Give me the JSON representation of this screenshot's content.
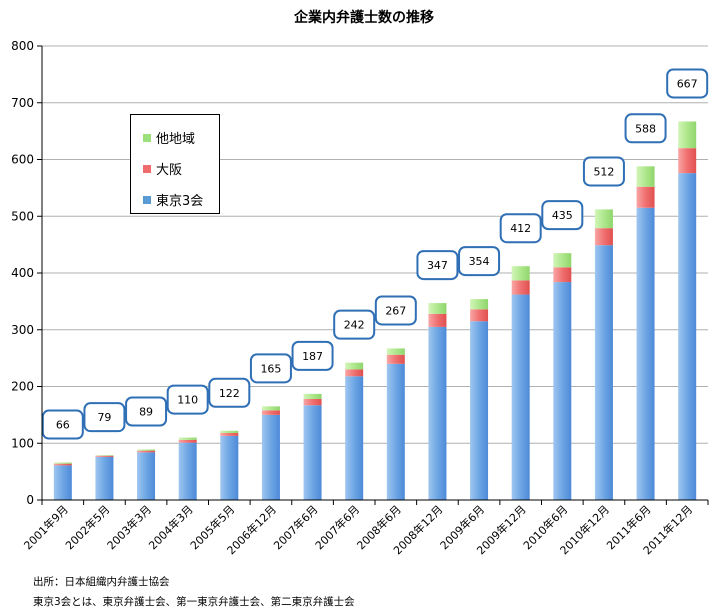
{
  "chart_data": {
    "type": "bar",
    "stacked": true,
    "title": "企業内弁護士数の推移",
    "categories": [
      "2001年9月",
      "2002年5月",
      "2003年3月",
      "2004年3月",
      "2005年5月",
      "2006年12月",
      "2007年6月",
      "2007年6月",
      "2008年6月",
      "2008年12月",
      "2009年6月",
      "2009年12月",
      "2010年6月",
      "2010年12月",
      "2011年6月",
      "2011年12月"
    ],
    "series": [
      {
        "name": "東京3会",
        "color": "#5b9bd5",
        "values": [
          61,
          76,
          84,
          101,
          113,
          150,
          167,
          218,
          240,
          305,
          315,
          362,
          384,
          449,
          515,
          576
        ]
      },
      {
        "name": "大阪",
        "color": "#f06b6b",
        "values": [
          3,
          2,
          3,
          5,
          5,
          8,
          11,
          12,
          16,
          23,
          21,
          25,
          26,
          30,
          37,
          44
        ]
      },
      {
        "name": "他地域",
        "color": "#9be07a",
        "values": [
          2,
          1,
          2,
          4,
          4,
          7,
          9,
          12,
          11,
          19,
          18,
          25,
          25,
          33,
          36,
          47
        ]
      }
    ],
    "totals": [
      "66",
      "79",
      "89",
      "110",
      "122",
      "165",
      "187",
      "242",
      "267",
      "347",
      "354",
      "412",
      "435",
      "512",
      "588",
      "667"
    ],
    "ylim": [
      0,
      800
    ],
    "yticks": [
      "0",
      "100",
      "200",
      "300",
      "400",
      "500",
      "600",
      "700",
      "800"
    ],
    "grid": true,
    "legend": "top-left",
    "xlabel": "",
    "ylabel": ""
  },
  "legend": {
    "item_other": "他地域",
    "item_osaka": "大阪",
    "item_tokyo": "東京3会"
  },
  "notes": {
    "source": "出所：日本組織内弁護士協会",
    "definition": "東京3会とは、東京弁護士会、第一東京弁護士会、第二東京弁護士会"
  }
}
